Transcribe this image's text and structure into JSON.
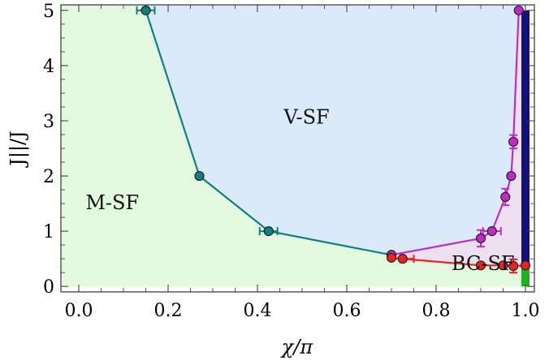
{
  "chart_data": {
    "type": "scatter",
    "title": "",
    "xlabel": "χ/π",
    "ylabel": "J||/J",
    "xlim": [
      -0.04,
      1.02
    ],
    "ylim": [
      -0.1,
      5.1
    ],
    "xticks": [
      "0.0",
      "0.2",
      "0.4",
      "0.6",
      "0.8",
      "1.0"
    ],
    "yticks": [
      "0",
      "1",
      "2",
      "3",
      "4",
      "5"
    ],
    "grid": false,
    "legend": "none",
    "regions": [
      {
        "label": "M-SF",
        "color": "#e2f8df",
        "label_at": [
          0.075,
          1.4
        ]
      },
      {
        "label": "V-SF",
        "color": "#dbeafa",
        "label_at": [
          0.51,
          2.95
        ]
      },
      {
        "label": "BC-SF",
        "color": "#ecdff0",
        "label_at": [
          0.905,
          0.3
        ]
      }
    ],
    "series": [
      {
        "color": "#0f8080",
        "x": [
          0.15,
          0.27,
          0.425,
          0.7
        ],
        "y": [
          5.0,
          2.0,
          1.0,
          0.57
        ],
        "xerr": [
          0.02,
          0.0,
          0.02,
          0.0
        ]
      },
      {
        "color": "#c22ac8",
        "x": [
          0.7,
          0.9,
          0.925,
          0.955,
          0.968,
          0.973,
          0.985
        ],
        "y": [
          0.57,
          0.87,
          1.0,
          1.62,
          2.0,
          2.62,
          5.0
        ],
        "xerr": [
          0.0,
          0.0,
          0.02,
          0.0,
          0.0,
          0.0,
          0.0
        ],
        "yerr": [
          0.0,
          0.15,
          0.0,
          0.15,
          0.0,
          0.12,
          0.0
        ]
      },
      {
        "color": "#ee2020",
        "x": [
          0.7,
          0.725,
          0.9,
          0.95,
          0.973,
          1.0
        ],
        "y": [
          0.52,
          0.5,
          0.38,
          0.38,
          0.37,
          0.38
        ],
        "xerr": [
          0.0,
          0.025,
          0.0,
          0.0,
          0.0,
          0.0
        ],
        "yerr": [
          0.0,
          0.0,
          0.0,
          0.0,
          0.12,
          0.0
        ]
      }
    ],
    "boundary_bars": [
      {
        "x": 1.0,
        "y0": 0.4,
        "y1": 5.0,
        "color": "#11117a"
      },
      {
        "x": 1.0,
        "y0": 0.0,
        "y1": 0.4,
        "color": "#21b021"
      }
    ]
  }
}
